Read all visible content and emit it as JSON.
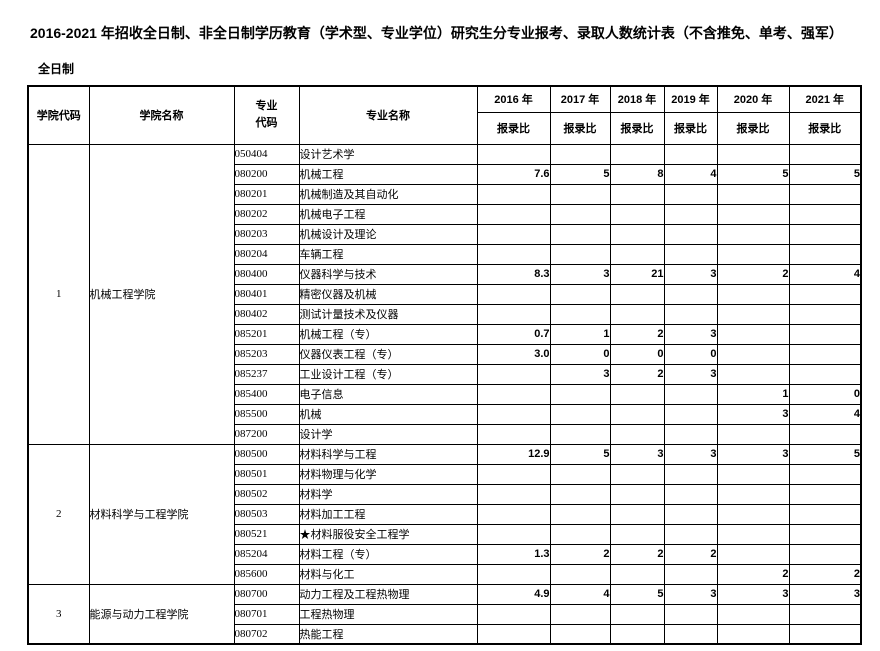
{
  "page": {
    "title": "2016-2021 年招收全日制、非全日制学历教育（学术型、专业学位）研究生分专业报考、录取人数统计表（不含推免、单考、强军）",
    "mode_label": "全日制"
  },
  "table": {
    "headers": {
      "college_code": "学院代码",
      "college_name": "学院名称",
      "major_code_line1": "专业",
      "major_code_line2": "代码",
      "major_name": "专业名称",
      "ratio": "报录比",
      "years": [
        "2016 年",
        "2017 年",
        "2018 年",
        "2019 年",
        "2020 年",
        "2021 年"
      ]
    },
    "sections": [
      {
        "college_code": "1",
        "college_name": "机械工程学院",
        "rows": [
          {
            "major_code": "050404",
            "major_name": "设计艺术学",
            "values": [
              "",
              "",
              "",
              "",
              "",
              ""
            ]
          },
          {
            "major_code": "080200",
            "major_name": "机械工程",
            "values": [
              "7.6",
              "5",
              "8",
              "4",
              "5",
              "5"
            ]
          },
          {
            "major_code": "080201",
            "major_name": "机械制造及其自动化",
            "values": [
              "",
              "",
              "",
              "",
              "",
              ""
            ]
          },
          {
            "major_code": "080202",
            "major_name": "机械电子工程",
            "values": [
              "",
              "",
              "",
              "",
              "",
              ""
            ]
          },
          {
            "major_code": "080203",
            "major_name": "机械设计及理论",
            "values": [
              "",
              "",
              "",
              "",
              "",
              ""
            ]
          },
          {
            "major_code": "080204",
            "major_name": "车辆工程",
            "values": [
              "",
              "",
              "",
              "",
              "",
              ""
            ]
          },
          {
            "major_code": "080400",
            "major_name": "仪器科学与技术",
            "values": [
              "8.3",
              "3",
              "21",
              "3",
              "2",
              "4"
            ]
          },
          {
            "major_code": "080401",
            "major_name": "精密仪器及机械",
            "values": [
              "",
              "",
              "",
              "",
              "",
              ""
            ]
          },
          {
            "major_code": "080402",
            "major_name": "测试计量技术及仪器",
            "values": [
              "",
              "",
              "",
              "",
              "",
              ""
            ]
          },
          {
            "major_code": "085201",
            "major_name": "机械工程（专）",
            "values": [
              "0.7",
              "1",
              "2",
              "3",
              "",
              ""
            ]
          },
          {
            "major_code": "085203",
            "major_name": "仪器仪表工程（专）",
            "values": [
              "3.0",
              "0",
              "0",
              "0",
              "",
              ""
            ]
          },
          {
            "major_code": "085237",
            "major_name": "工业设计工程（专）",
            "values": [
              "",
              "3",
              "2",
              "3",
              "",
              ""
            ]
          },
          {
            "major_code": "085400",
            "major_name": "电子信息",
            "values": [
              "",
              "",
              "",
              "",
              "1",
              "0"
            ]
          },
          {
            "major_code": "085500",
            "major_name": "机械",
            "values": [
              "",
              "",
              "",
              "",
              "3",
              "4"
            ]
          },
          {
            "major_code": "087200",
            "major_name": "设计学",
            "values": [
              "",
              "",
              "",
              "",
              "",
              ""
            ]
          }
        ]
      },
      {
        "college_code": "2",
        "college_name": "材料科学与工程学院",
        "rows": [
          {
            "major_code": "080500",
            "major_name": "材料科学与工程",
            "values": [
              "12.9",
              "5",
              "3",
              "3",
              "3",
              "5"
            ]
          },
          {
            "major_code": "080501",
            "major_name": "材料物理与化学",
            "values": [
              "",
              "",
              "",
              "",
              "",
              ""
            ]
          },
          {
            "major_code": "080502",
            "major_name": "材料学",
            "values": [
              "",
              "",
              "",
              "",
              "",
              ""
            ]
          },
          {
            "major_code": "080503",
            "major_name": "材料加工工程",
            "values": [
              "",
              "",
              "",
              "",
              "",
              ""
            ]
          },
          {
            "major_code": "080521",
            "major_name": "★材料服役安全工程学",
            "values": [
              "",
              "",
              "",
              "",
              "",
              ""
            ]
          },
          {
            "major_code": "085204",
            "major_name": "材料工程（专）",
            "values": [
              "1.3",
              "2",
              "2",
              "2",
              "",
              ""
            ]
          },
          {
            "major_code": "085600",
            "major_name": "材料与化工",
            "values": [
              "",
              "",
              "",
              "",
              "2",
              "2"
            ]
          }
        ]
      },
      {
        "college_code": "3",
        "college_name": "能源与动力工程学院",
        "rows": [
          {
            "major_code": "080700",
            "major_name": "动力工程及工程热物理",
            "values": [
              "4.9",
              "4",
              "5",
              "3",
              "3",
              "3"
            ]
          },
          {
            "major_code": "080701",
            "major_name": "工程热物理",
            "values": [
              "",
              "",
              "",
              "",
              "",
              ""
            ]
          },
          {
            "major_code": "080702",
            "major_name": "热能工程",
            "values": [
              "",
              "",
              "",
              "",
              "",
              ""
            ]
          }
        ]
      }
    ]
  }
}
